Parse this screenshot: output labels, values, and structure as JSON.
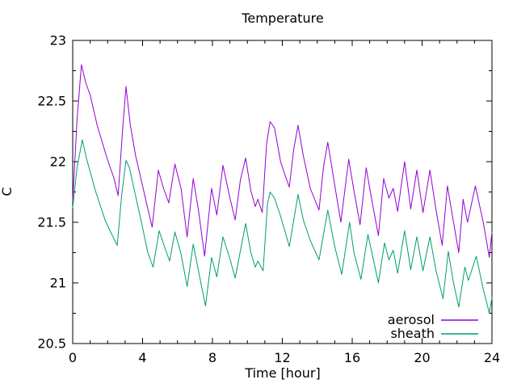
{
  "chart_data": {
    "type": "line",
    "title": "Temperature",
    "xlabel": "Time [hour]",
    "ylabel": "C",
    "xlim": [
      0,
      24
    ],
    "ylim": [
      20.5,
      23
    ],
    "grid": false,
    "legend_position": "inside-bottom-right",
    "x_major_tick_step": 4,
    "x_minor_tick_step": 1,
    "y_major_tick_step": 0.5,
    "y_minor_tick_step": 0.25,
    "x_ticks": [
      [
        0,
        "0"
      ],
      [
        4,
        "4"
      ],
      [
        8,
        "8"
      ],
      [
        12,
        "12"
      ],
      [
        16,
        "16"
      ],
      [
        20,
        "20"
      ],
      [
        24,
        "24"
      ]
    ],
    "y_ticks": [
      [
        23,
        "23"
      ],
      [
        22.5,
        "22.5"
      ],
      [
        22,
        "22"
      ],
      [
        21.5,
        "21.5"
      ],
      [
        21,
        "21"
      ],
      [
        20.5,
        "20.5"
      ]
    ],
    "series": [
      {
        "name": "aerosol",
        "color": "#9400d3",
        "points": [
          [
            0,
            21.67
          ],
          [
            0.25,
            22.35
          ],
          [
            0.5,
            22.8
          ],
          [
            0.75,
            22.65
          ],
          [
            1.0,
            22.55
          ],
          [
            1.4,
            22.3
          ],
          [
            1.9,
            22.06
          ],
          [
            2.1,
            21.97
          ],
          [
            2.35,
            21.87
          ],
          [
            2.6,
            21.72
          ],
          [
            2.85,
            22.25
          ],
          [
            3.05,
            22.62
          ],
          [
            3.3,
            22.3
          ],
          [
            3.6,
            22.05
          ],
          [
            4.0,
            21.8
          ],
          [
            4.4,
            21.55
          ],
          [
            4.55,
            21.46
          ],
          [
            4.9,
            21.93
          ],
          [
            5.2,
            21.78
          ],
          [
            5.5,
            21.66
          ],
          [
            5.85,
            21.98
          ],
          [
            6.2,
            21.78
          ],
          [
            6.55,
            21.38
          ],
          [
            6.9,
            21.86
          ],
          [
            7.2,
            21.6
          ],
          [
            7.55,
            21.22
          ],
          [
            7.95,
            21.78
          ],
          [
            8.25,
            21.56
          ],
          [
            8.6,
            21.97
          ],
          [
            9.0,
            21.7
          ],
          [
            9.3,
            21.52
          ],
          [
            9.6,
            21.85
          ],
          [
            9.9,
            22.03
          ],
          [
            10.2,
            21.76
          ],
          [
            10.45,
            21.63
          ],
          [
            10.6,
            21.69
          ],
          [
            10.85,
            21.58
          ],
          [
            11.1,
            22.15
          ],
          [
            11.3,
            22.33
          ],
          [
            11.55,
            22.28
          ],
          [
            11.9,
            22.0
          ],
          [
            12.2,
            21.87
          ],
          [
            12.4,
            21.79
          ],
          [
            12.65,
            22.1
          ],
          [
            12.9,
            22.3
          ],
          [
            13.2,
            22.05
          ],
          [
            13.6,
            21.78
          ],
          [
            14.1,
            21.6
          ],
          [
            14.35,
            21.95
          ],
          [
            14.6,
            22.16
          ],
          [
            14.95,
            21.85
          ],
          [
            15.35,
            21.5
          ],
          [
            15.8,
            22.02
          ],
          [
            16.1,
            21.76
          ],
          [
            16.45,
            21.48
          ],
          [
            16.8,
            21.95
          ],
          [
            17.1,
            21.7
          ],
          [
            17.5,
            21.39
          ],
          [
            17.8,
            21.86
          ],
          [
            18.1,
            21.7
          ],
          [
            18.35,
            21.78
          ],
          [
            18.6,
            21.59
          ],
          [
            19.0,
            22.0
          ],
          [
            19.35,
            21.61
          ],
          [
            19.7,
            21.93
          ],
          [
            20.05,
            21.58
          ],
          [
            20.45,
            21.93
          ],
          [
            20.8,
            21.6
          ],
          [
            21.15,
            21.31
          ],
          [
            21.45,
            21.8
          ],
          [
            21.8,
            21.5
          ],
          [
            22.1,
            21.25
          ],
          [
            22.35,
            21.69
          ],
          [
            22.6,
            21.5
          ],
          [
            23.05,
            21.8
          ],
          [
            23.5,
            21.5
          ],
          [
            23.85,
            21.21
          ],
          [
            24,
            21.42
          ]
        ]
      },
      {
        "name": "sheath",
        "color": "#009e73",
        "points": [
          [
            0,
            21.62
          ],
          [
            0.25,
            21.95
          ],
          [
            0.55,
            22.18
          ],
          [
            0.8,
            22.02
          ],
          [
            1.3,
            21.76
          ],
          [
            1.85,
            21.52
          ],
          [
            2.1,
            21.44
          ],
          [
            2.55,
            21.31
          ],
          [
            2.8,
            21.72
          ],
          [
            3.05,
            22.01
          ],
          [
            3.25,
            21.95
          ],
          [
            3.55,
            21.75
          ],
          [
            3.95,
            21.49
          ],
          [
            4.3,
            21.25
          ],
          [
            4.6,
            21.13
          ],
          [
            4.95,
            21.43
          ],
          [
            5.25,
            21.3
          ],
          [
            5.55,
            21.18
          ],
          [
            5.85,
            21.42
          ],
          [
            6.2,
            21.24
          ],
          [
            6.55,
            20.97
          ],
          [
            6.9,
            21.32
          ],
          [
            7.2,
            21.1
          ],
          [
            7.6,
            20.81
          ],
          [
            7.95,
            21.21
          ],
          [
            8.25,
            21.05
          ],
          [
            8.6,
            21.38
          ],
          [
            9.0,
            21.2
          ],
          [
            9.3,
            21.04
          ],
          [
            9.9,
            21.49
          ],
          [
            10.2,
            21.25
          ],
          [
            10.45,
            21.13
          ],
          [
            10.6,
            21.18
          ],
          [
            10.9,
            21.1
          ],
          [
            11.15,
            21.65
          ],
          [
            11.3,
            21.75
          ],
          [
            11.55,
            21.7
          ],
          [
            11.9,
            21.55
          ],
          [
            12.4,
            21.3
          ],
          [
            12.9,
            21.73
          ],
          [
            13.2,
            21.52
          ],
          [
            13.6,
            21.35
          ],
          [
            14.1,
            21.19
          ],
          [
            14.6,
            21.6
          ],
          [
            15.0,
            21.3
          ],
          [
            15.4,
            21.07
          ],
          [
            15.85,
            21.5
          ],
          [
            16.1,
            21.25
          ],
          [
            16.5,
            21.03
          ],
          [
            16.9,
            21.4
          ],
          [
            17.2,
            21.2
          ],
          [
            17.5,
            21.0
          ],
          [
            17.85,
            21.33
          ],
          [
            18.1,
            21.19
          ],
          [
            18.35,
            21.27
          ],
          [
            18.6,
            21.08
          ],
          [
            19.0,
            21.43
          ],
          [
            19.35,
            21.11
          ],
          [
            19.7,
            21.38
          ],
          [
            20.05,
            21.1
          ],
          [
            20.45,
            21.38
          ],
          [
            20.8,
            21.1
          ],
          [
            21.2,
            20.87
          ],
          [
            21.5,
            21.26
          ],
          [
            21.8,
            21.0
          ],
          [
            22.1,
            20.8
          ],
          [
            22.45,
            21.13
          ],
          [
            22.65,
            21.02
          ],
          [
            23.1,
            21.22
          ],
          [
            23.5,
            20.95
          ],
          [
            23.85,
            20.75
          ],
          [
            24,
            20.88
          ]
        ]
      }
    ]
  }
}
